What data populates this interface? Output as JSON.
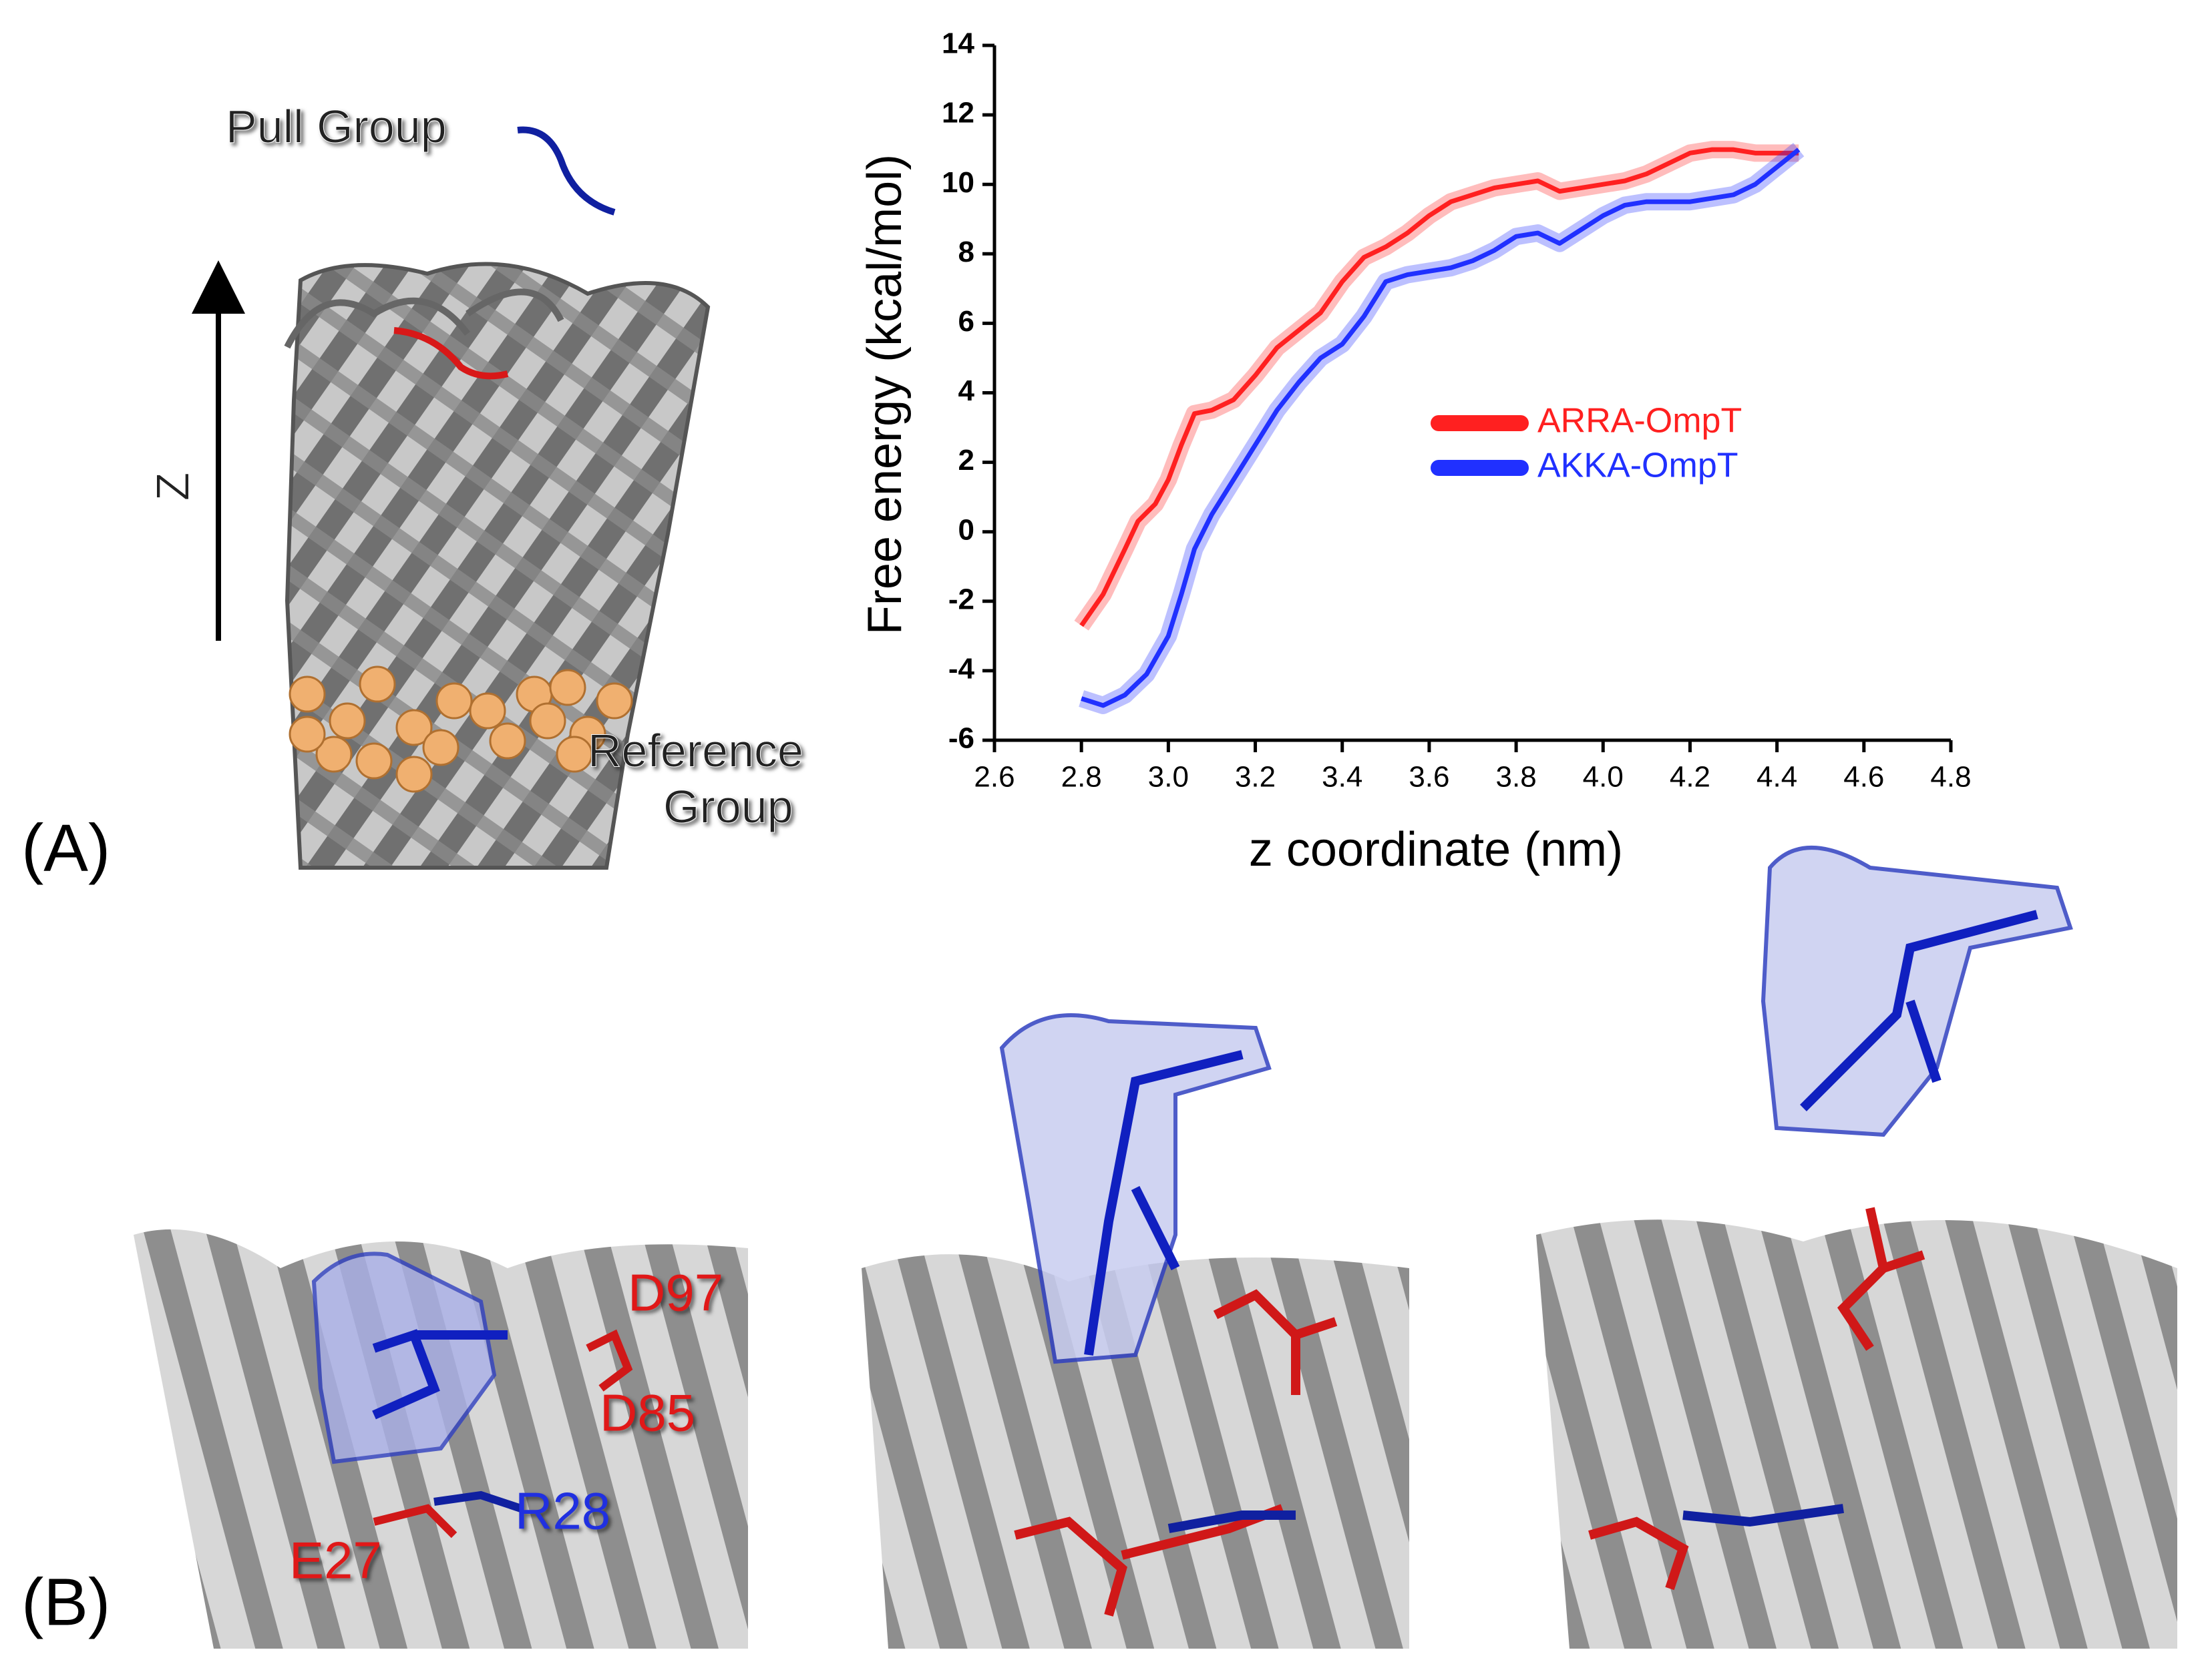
{
  "chart_data": {
    "type": "line",
    "xlabel": "z coordinate (nm)",
    "ylabel": "Free energy (kcal/mol)",
    "xlim": [
      2.6,
      4.8
    ],
    "xticks": [
      2.6,
      2.8,
      {
        "value": 3,
        "label": "3.0"
      },
      3.2,
      3.4,
      3.6,
      3.8,
      {
        "value": 4,
        "label": "4.0"
      },
      4.2,
      4.4,
      4.6,
      4.8
    ],
    "ylim": [
      -6,
      14
    ],
    "yticks": [
      -6,
      -4,
      -2,
      0,
      2,
      4,
      6,
      8,
      10,
      12,
      14
    ],
    "legend": "right",
    "series": [
      {
        "name": "ARRA-OmpT",
        "color": "#ff2020",
        "x": [
          2.8,
          2.85,
          2.9,
          2.93,
          2.97,
          3.0,
          3.03,
          3.06,
          3.1,
          3.15,
          3.2,
          3.25,
          3.3,
          3.35,
          3.4,
          3.45,
          3.5,
          3.55,
          3.6,
          3.65,
          3.7,
          3.75,
          3.8,
          3.85,
          3.9,
          3.95,
          4.0,
          4.05,
          4.1,
          4.15,
          4.2,
          4.25,
          4.3,
          4.35,
          4.4,
          4.45
        ],
        "values": [
          -2.7,
          -1.8,
          -0.5,
          0.3,
          0.8,
          1.5,
          2.5,
          3.4,
          3.5,
          3.8,
          4.5,
          5.3,
          5.8,
          6.3,
          7.2,
          7.9,
          8.2,
          8.6,
          9.1,
          9.5,
          9.7,
          9.9,
          10.0,
          10.1,
          9.8,
          9.9,
          10.0,
          10.1,
          10.3,
          10.6,
          10.9,
          11.0,
          11.0,
          10.9,
          10.9,
          10.9
        ]
      },
      {
        "name": "AKKA-OmpT",
        "color": "#2030ff",
        "x": [
          2.8,
          2.85,
          2.9,
          2.95,
          3.0,
          3.03,
          3.06,
          3.1,
          3.15,
          3.2,
          3.25,
          3.3,
          3.35,
          3.4,
          3.45,
          3.5,
          3.55,
          3.6,
          3.65,
          3.7,
          3.75,
          3.8,
          3.85,
          3.9,
          3.95,
          4.0,
          4.05,
          4.1,
          4.15,
          4.2,
          4.25,
          4.3,
          4.35,
          4.4,
          4.45
        ],
        "values": [
          -4.8,
          -5.0,
          -4.7,
          -4.1,
          -3.0,
          -1.8,
          -0.5,
          0.5,
          1.5,
          2.5,
          3.5,
          4.3,
          5.0,
          5.4,
          6.2,
          7.2,
          7.4,
          7.5,
          7.6,
          7.8,
          8.1,
          8.5,
          8.6,
          8.3,
          8.7,
          9.1,
          9.4,
          9.5,
          9.5,
          9.5,
          9.6,
          9.7,
          10.0,
          10.5,
          11.0
        ]
      }
    ]
  },
  "figure": {
    "panel_a": "(A)",
    "panel_b": "(B)",
    "pull_group": "Pull Group",
    "axis_z": "Z",
    "reference_1": "Reference",
    "reference_2": "Group",
    "residues": [
      "D97",
      "D85",
      "R28",
      "E27"
    ]
  }
}
